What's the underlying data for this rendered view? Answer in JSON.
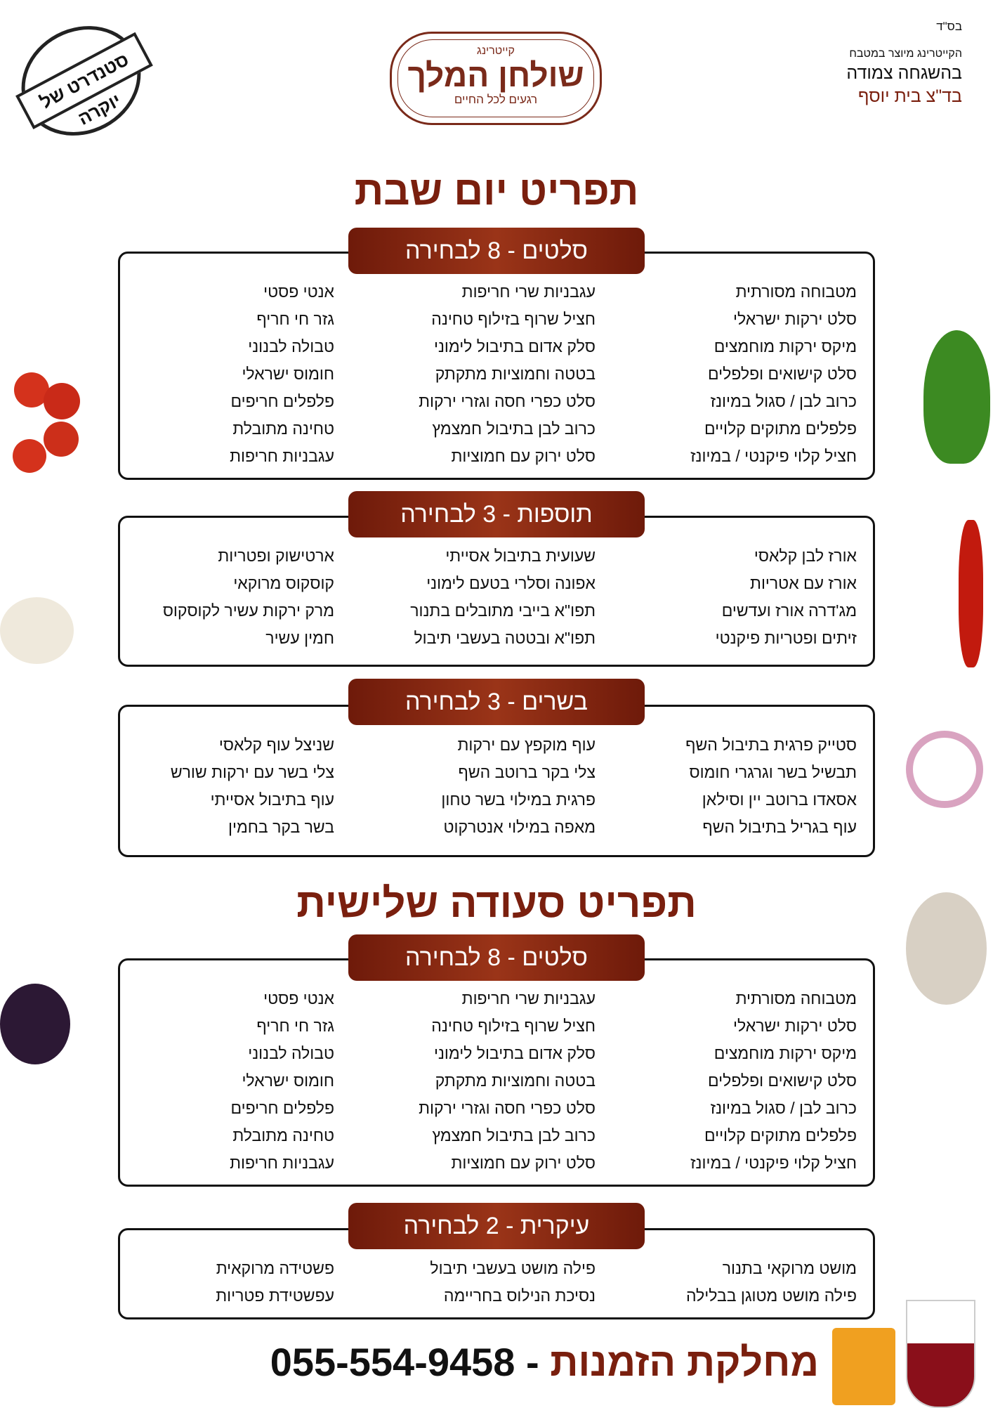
{
  "header": {
    "bsd": "בס\"ד",
    "kitchen_line1": "הקייטרינג מיוצר במטבח",
    "kitchen_line2": "בהשגחה צמודה",
    "kitchen_line3": "בד\"צ בית יוסף"
  },
  "logo": {
    "top": "קייטרינג",
    "name": "שולחן המלך",
    "slogan": "רגעים לכל החיים"
  },
  "stamp": {
    "text": "סטנדרט של יוקרה"
  },
  "titles": {
    "shabbat": "תפריט יום שבת",
    "seuda": "תפריט סעודה שלישית"
  },
  "sections": [
    {
      "header": "סלטים - 8 לבחירה",
      "columns": [
        [
          "מטבוחה מסורתית",
          "סלט ירקות ישראלי",
          "מיקס ירקות מוחמצים",
          "סלט קישואים ופלפלים",
          "כרוב לבן / סגול במיונז",
          "פלפלים מתוקים קלויים",
          "חציל קלוי פיקנטי / במיונז"
        ],
        [
          "עגבניות שרי חריפות",
          "חציל שרוף בזילוף טחינה",
          "סלק אדום בתיבול לימוני",
          "בטטה וחמוציות מתקתק",
          "סלט כפרי חסה וגזרי ירקות",
          "כרוב לבן בתיבול  חמצמץ",
          "סלט ירוק עם חמוציות"
        ],
        [
          "אנטי פסטי",
          "גזר חי חריף",
          "טבולה לבנוני",
          "חומוס ישראלי",
          "פלפלים חריפים",
          "טחינה מתובלת",
          "עגבניות חריפות"
        ]
      ]
    },
    {
      "header": "תוספות - 3 לבחירה",
      "columns": [
        [
          "אורז לבן קלאסי",
          "אורז עם אטריות",
          "מג'דרה אורז ועדשים",
          "זיתים ופטריות פיקנטי"
        ],
        [
          "שעועית בתיבול אסייתי",
          "אפונה וסלרי בטעם לימוני",
          "תפו\"א בייבי מתובלים בתנור",
          "תפו\"א ובטטה בעשבי תיבול"
        ],
        [
          "ארטישוק ופטריות",
          "קוסקוס מרוקאי",
          "מרק ירקות עשיר לקוסקוס",
          "חמין עשיר"
        ]
      ]
    },
    {
      "header": "בשרים - 3 לבחירה",
      "columns": [
        [
          "סטייק פרגית בתיבול השף",
          "תבשיל בשר וגרגרי חומוס",
          "אסאדו ברוטב יין וסילאן",
          "עוף בגריל בתיבול השף"
        ],
        [
          "עוף מוקפץ עם ירקות",
          "צלי בקר ברוטב השף",
          "פרגית במילוי בשר טחון",
          "מאפה במילוי אנטרקוט"
        ],
        [
          "שניצל עוף קלאסי",
          "צלי בשר עם ירקות שורש",
          "עוף בתיבול אסייתי",
          "בשר בקר בחמין"
        ]
      ]
    },
    {
      "header": "סלטים - 8 לבחירה",
      "columns": [
        [
          "מטבוחה מסורתית",
          "סלט ירקות ישראלי",
          "מיקס ירקות מוחמצים",
          "סלט קישואים ופלפלים",
          "כרוב לבן / סגול במיונז",
          "פלפלים מתוקים קלויים",
          "חציל קלוי פיקנטי / במיונז"
        ],
        [
          "עגבניות שרי חריפות",
          "חציל שרוף בזילוף טחינה",
          "סלק אדום בתיבול לימוני",
          "בטטה וחמוציות מתקתק",
          "סלט כפרי חסה וגזרי ירקות",
          "כרוב לבן בתיבול  חמצמץ",
          "סלט ירוק עם חמוציות"
        ],
        [
          "אנטי פסטי",
          "גזר חי חריף",
          "טבולה לבנוני",
          "חומוס ישראלי",
          "פלפלים חריפים",
          "טחינה מתובלת",
          "עגבניות חריפות"
        ]
      ]
    },
    {
      "header": "עיקרית - 2 לבחירה",
      "columns": [
        [
          "מושט מרוקאי בתנור",
          "פילה מושט מטוגן בבלילה"
        ],
        [
          "פילה מושט בעשבי תיבול",
          "נסיכת הנילוס בחריימה"
        ],
        [
          "פשטידה מרוקאית",
          "עפשטידת פטריות"
        ]
      ]
    }
  ],
  "footer": {
    "label": "מחלקת הזמנות",
    "separator": " - ",
    "phone": "055-554-9458"
  },
  "colors": {
    "brand": "#7a1f0e",
    "pill": "#8a2a12"
  }
}
